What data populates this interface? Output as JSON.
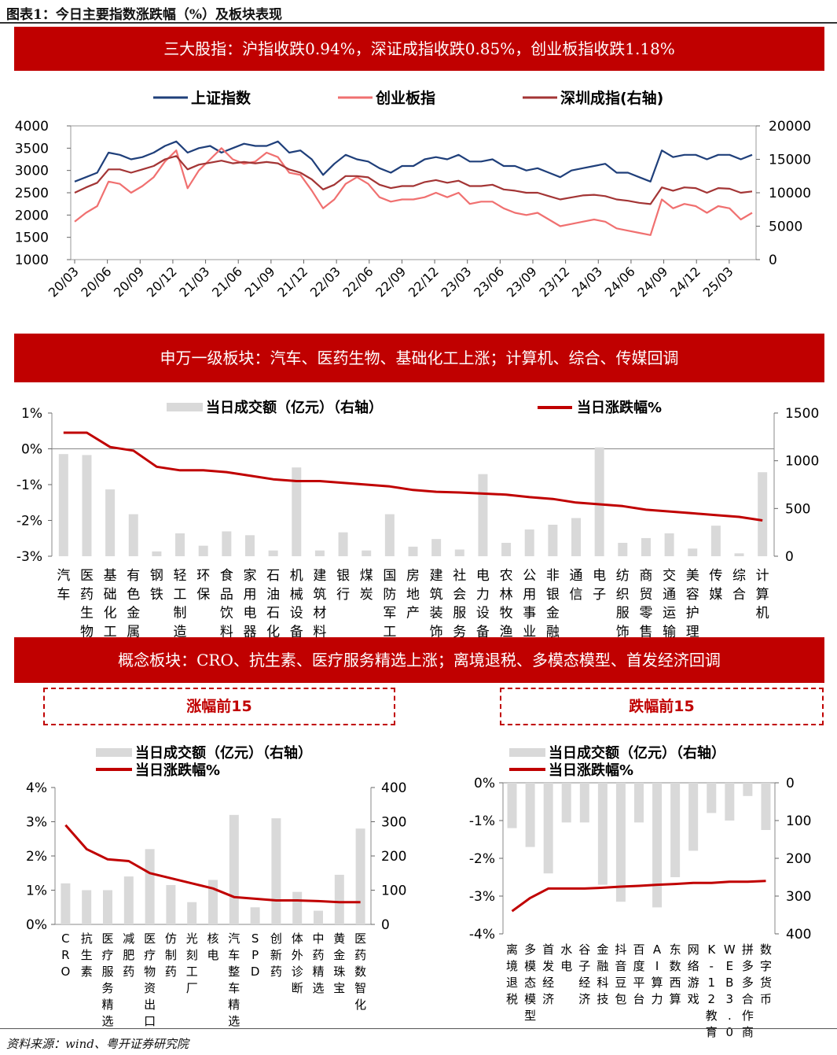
{
  "figure_title": "图表1：今日主要指数涨跌幅（%）及板块表现",
  "source": "资料来源：wind、粤开证券研究院",
  "sections": {
    "indices_banner": "三大股指：沪指收跌0.94%，深证成指收跌0.85%，创业板指收跌1.18%",
    "industry_banner": "申万一级板块：汽车、医药生物、基础化工上涨；计算机、综合、传媒回调",
    "concept_banner": "概念板块：CRO、抗生素、医疗服务精选上涨；离境退税、多模态模型、首发经济回调",
    "top15_label": "涨幅前15",
    "bottom15_label": "跌幅前15"
  },
  "colors": {
    "banner": "#c00000",
    "sse": "#1f3f7a",
    "gem": "#f07070",
    "szse": "#a33535",
    "bar": "#d9d9d9",
    "line": "#c00000"
  },
  "chart_data": [
    {
      "type": "line",
      "id": "indices",
      "legend": [
        "上证指数",
        "创业板指",
        "深圳成指(右轴)"
      ],
      "legend_position": "top",
      "x_ticks": [
        "20/03",
        "20/06",
        "20/09",
        "20/12",
        "21/03",
        "21/06",
        "21/09",
        "21/12",
        "22/03",
        "22/06",
        "22/09",
        "22/12",
        "23/03",
        "23/06",
        "23/09",
        "23/12",
        "24/03",
        "24/06",
        "24/09",
        "24/12",
        "25/03"
      ],
      "y_left_ticks": [
        "4000",
        "3500",
        "3000",
        "2500",
        "2000",
        "1500",
        "1000"
      ],
      "y_right_ticks": [
        "20000",
        "15000",
        "10000",
        "5000",
        "0"
      ],
      "ylim_left": [
        1000,
        4000
      ],
      "ylim_right": [
        0,
        20000
      ],
      "x_period_start": "20/03",
      "series": [
        {
          "name": "上证指数",
          "axis": "left",
          "x": [
            "20/03",
            "20/05",
            "20/06",
            "20/07",
            "20/08",
            "20/09",
            "20/10",
            "20/12",
            "21/01",
            "21/02",
            "21/03",
            "21/05",
            "21/06",
            "21/07",
            "21/08",
            "21/09",
            "21/10",
            "21/11",
            "21/12",
            "22/01",
            "22/02",
            "22/03",
            "22/04",
            "22/05",
            "22/06",
            "22/07",
            "22/08",
            "22/09",
            "22/10",
            "22/11",
            "22/12",
            "23/01",
            "23/02",
            "23/03",
            "23/04",
            "23/05",
            "23/06",
            "23/07",
            "23/08",
            "23/09",
            "23/10",
            "23/11",
            "23/12",
            "24/01",
            "24/02",
            "24/03",
            "24/04",
            "24/05",
            "24/06",
            "24/07",
            "24/08",
            "24/09",
            "24/09b",
            "24/10",
            "24/11",
            "24/12",
            "25/01",
            "25/02",
            "25/03",
            "25/04",
            "25/05"
          ],
          "values": [
            2750,
            2850,
            2950,
            3400,
            3350,
            3250,
            3300,
            3400,
            3550,
            3650,
            3400,
            3500,
            3550,
            3400,
            3500,
            3600,
            3550,
            3550,
            3650,
            3400,
            3450,
            3250,
            2900,
            3150,
            3350,
            3250,
            3200,
            3050,
            2950,
            3100,
            3100,
            3250,
            3300,
            3250,
            3350,
            3200,
            3200,
            3250,
            3100,
            3100,
            3000,
            3050,
            2950,
            2850,
            3000,
            3050,
            3100,
            3150,
            2950,
            2950,
            2850,
            2750,
            3450,
            3300,
            3350,
            3350,
            3250,
            3350,
            3350,
            3250,
            3350
          ]
        },
        {
          "name": "创业板指",
          "axis": "left",
          "x": [
            "20/03",
            "20/05",
            "20/06",
            "20/07",
            "20/08",
            "20/09",
            "20/10",
            "20/12",
            "21/01",
            "21/02",
            "21/03",
            "21/05",
            "21/06",
            "21/07",
            "21/08",
            "21/09",
            "21/10",
            "21/11",
            "21/12",
            "22/01",
            "22/02",
            "22/03",
            "22/04",
            "22/05",
            "22/06",
            "22/07",
            "22/08",
            "22/09",
            "22/10",
            "22/11",
            "22/12",
            "23/01",
            "23/02",
            "23/03",
            "23/04",
            "23/05",
            "23/06",
            "23/07",
            "23/08",
            "23/09",
            "23/10",
            "23/11",
            "23/12",
            "24/01",
            "24/02",
            "24/03",
            "24/04",
            "24/05",
            "24/06",
            "24/07",
            "24/08",
            "24/09",
            "24/09b",
            "24/10",
            "24/11",
            "24/12",
            "25/01",
            "25/02",
            "25/03",
            "25/04",
            "25/05"
          ],
          "values": [
            1850,
            2050,
            2200,
            2750,
            2700,
            2500,
            2650,
            2850,
            3200,
            3450,
            2600,
            3000,
            3250,
            3500,
            3250,
            3150,
            3200,
            3400,
            3300,
            2950,
            2900,
            2550,
            2150,
            2350,
            2700,
            2850,
            2700,
            2400,
            2300,
            2350,
            2350,
            2400,
            2500,
            2400,
            2500,
            2250,
            2300,
            2300,
            2150,
            2050,
            2000,
            2050,
            1900,
            1750,
            1800,
            1850,
            1900,
            1850,
            1700,
            1650,
            1600,
            1550,
            2350,
            2150,
            2250,
            2200,
            2050,
            2200,
            2150,
            1900,
            2050
          ]
        },
        {
          "name": "深圳成指(右轴)",
          "axis": "right",
          "x": [
            "20/03",
            "20/05",
            "20/06",
            "20/07",
            "20/08",
            "20/09",
            "20/10",
            "20/12",
            "21/01",
            "21/02",
            "21/03",
            "21/05",
            "21/06",
            "21/07",
            "21/08",
            "21/09",
            "21/10",
            "21/11",
            "21/12",
            "22/01",
            "22/02",
            "22/03",
            "22/04",
            "22/05",
            "22/06",
            "22/07",
            "22/08",
            "22/09",
            "22/10",
            "22/11",
            "22/12",
            "23/01",
            "23/02",
            "23/03",
            "23/04",
            "23/05",
            "23/06",
            "23/07",
            "23/08",
            "23/09",
            "23/10",
            "23/11",
            "23/12",
            "24/01",
            "24/02",
            "24/03",
            "24/04",
            "24/05",
            "24/06",
            "24/07",
            "24/08",
            "24/09",
            "24/09b",
            "24/10",
            "24/11",
            "24/12",
            "25/01",
            "25/02",
            "25/03",
            "25/04",
            "25/05"
          ],
          "values": [
            10000,
            10800,
            11500,
            13500,
            13500,
            13000,
            13500,
            14000,
            15000,
            15500,
            13500,
            14200,
            14500,
            14800,
            14400,
            14600,
            14400,
            14600,
            14400,
            13500,
            13000,
            12000,
            10500,
            11200,
            12500,
            12500,
            12300,
            11200,
            10700,
            11000,
            11000,
            11600,
            11900,
            11500,
            11800,
            11000,
            11000,
            11200,
            10500,
            10300,
            10000,
            10000,
            9500,
            9000,
            9300,
            9600,
            9700,
            9500,
            9000,
            8800,
            8500,
            8300,
            10800,
            10300,
            10800,
            10700,
            10000,
            10700,
            10600,
            10000,
            10200
          ]
        }
      ]
    },
    {
      "type": "bar+line",
      "id": "sw_level1",
      "legend": [
        "当日成交额（亿元）（右轴）",
        "当日涨跌幅%"
      ],
      "legend_position": "top",
      "categories": [
        "汽车",
        "医药生物",
        "基础化工",
        "有色金属",
        "钢铁",
        "轻工制造",
        "环保",
        "食品饮料",
        "家用电器",
        "石油石化",
        "机械设备",
        "建筑材料",
        "银行",
        "煤炭",
        "国防军工",
        "房地产",
        "建筑装饰",
        "社会服务",
        "电力设备",
        "农林牧渔",
        "公用事业",
        "非银金融",
        "通信",
        "电子",
        "纺织服饰",
        "商贸零售",
        "交通运输",
        "美容护理",
        "传媒",
        "综合",
        "计算机"
      ],
      "y_left_ticks": [
        "1%",
        "0%",
        "-1%",
        "-2%",
        "-3%"
      ],
      "y_right_ticks": [
        "1500",
        "1000",
        "500",
        "0"
      ],
      "ylim_left": [
        -3,
        1
      ],
      "ylim_right": [
        0,
        1500
      ],
      "series": [
        {
          "name": "当日成交额（亿元）（右轴）",
          "type": "bar",
          "axis": "right",
          "values": [
            1070,
            1060,
            700,
            440,
            50,
            240,
            110,
            260,
            220,
            60,
            930,
            60,
            250,
            60,
            440,
            100,
            180,
            70,
            860,
            140,
            280,
            330,
            400,
            1140,
            140,
            190,
            240,
            80,
            320,
            30,
            880
          ]
        },
        {
          "name": "当日涨跌幅%",
          "type": "line",
          "axis": "left",
          "values": [
            0.45,
            0.45,
            0.05,
            -0.05,
            -0.5,
            -0.6,
            -0.6,
            -0.65,
            -0.75,
            -0.85,
            -0.9,
            -0.9,
            -0.95,
            -1.0,
            -1.05,
            -1.15,
            -1.2,
            -1.22,
            -1.25,
            -1.28,
            -1.35,
            -1.4,
            -1.5,
            -1.55,
            -1.6,
            -1.7,
            -1.75,
            -1.8,
            -1.85,
            -1.9,
            -2.0
          ]
        }
      ]
    },
    {
      "type": "bar+line",
      "id": "concept_top15",
      "legend": [
        "当日成交额（亿元）（右轴）",
        "当日涨跌幅%"
      ],
      "legend_position": "top-left",
      "categories": [
        "CRO",
        "抗生素",
        "医疗服务精选",
        "减肥药",
        "医疗物资出口",
        "仿制药",
        "光刻工厂",
        "核电",
        "汽车整车精选",
        "SPD",
        "创新药",
        "体外诊断",
        "中药精选",
        "黄金珠宝",
        "医药数智化"
      ],
      "y_left_ticks": [
        "4%",
        "3%",
        "2%",
        "1%",
        "0%"
      ],
      "y_right_ticks": [
        "400",
        "300",
        "200",
        "100",
        "0"
      ],
      "ylim_left": [
        0,
        4
      ],
      "ylim_right": [
        0,
        400
      ],
      "series": [
        {
          "name": "当日成交额（亿元）（右轴）",
          "type": "bar",
          "axis": "right",
          "values": [
            120,
            100,
            100,
            140,
            220,
            115,
            65,
            130,
            320,
            50,
            310,
            95,
            40,
            145,
            280
          ]
        },
        {
          "name": "当日涨跌幅%",
          "type": "line",
          "axis": "left",
          "values": [
            2.9,
            2.2,
            1.9,
            1.85,
            1.5,
            1.35,
            1.2,
            1.05,
            0.8,
            0.75,
            0.7,
            0.7,
            0.68,
            0.65,
            0.65
          ]
        }
      ]
    },
    {
      "type": "bar+line",
      "id": "concept_bottom15",
      "legend": [
        "当日成交额（亿元）（右轴）",
        "当日涨跌幅%"
      ],
      "legend_position": "top-left",
      "categories": [
        "离境退税",
        "多模态模型",
        "首发经济",
        "水电",
        "谷子经济",
        "金融科技",
        "抖音豆包",
        "百度平台",
        "AI算力",
        "东数西算",
        "网络游戏",
        "K-12教育",
        "WEB3.0",
        "拼多多合作商",
        "数字货币"
      ],
      "y_left_ticks": [
        "0%",
        "-1%",
        "-2%",
        "-3%",
        "-4%"
      ],
      "y_right_ticks": [
        "0",
        "100",
        "200",
        "300",
        "400"
      ],
      "ylim_left": [
        -4,
        0
      ],
      "ylim_right": [
        400,
        0
      ],
      "series": [
        {
          "name": "当日成交额（亿元）（右轴）",
          "type": "bar",
          "axis": "right",
          "values": [
            120,
            170,
            240,
            105,
            105,
            270,
            315,
            105,
            330,
            250,
            180,
            80,
            100,
            35,
            125
          ]
        },
        {
          "name": "当日涨跌幅%",
          "type": "line",
          "axis": "left",
          "values": [
            -3.4,
            -3.05,
            -2.8,
            -2.8,
            -2.8,
            -2.78,
            -2.75,
            -2.73,
            -2.7,
            -2.68,
            -2.65,
            -2.65,
            -2.62,
            -2.62,
            -2.6
          ]
        }
      ]
    }
  ]
}
